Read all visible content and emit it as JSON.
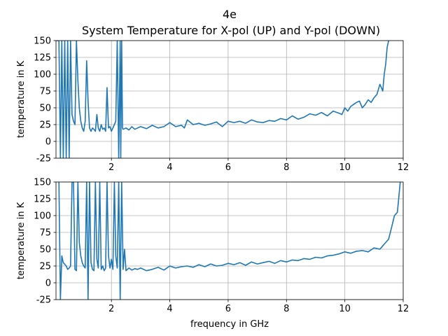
{
  "figure": {
    "suptitle": "4e",
    "subtitle": "System Temperature for X-pol (UP) and Y-pol (DOWN)"
  },
  "chart_data": [
    {
      "type": "line",
      "panel": "top",
      "ylabel": "temperature in K",
      "xlabel": "",
      "xlim": [
        0.1,
        12
      ],
      "ylim": [
        -25,
        150
      ],
      "xticks": [
        2,
        4,
        6,
        8,
        10,
        12
      ],
      "yticks": [
        -25,
        0,
        25,
        50,
        75,
        100,
        125,
        150
      ],
      "grid": true,
      "color": "#1f77b4",
      "series": [
        {
          "x": [
            0.1,
            0.2,
            0.25,
            0.3,
            0.35,
            0.4,
            0.45,
            0.5,
            0.55,
            0.6,
            0.65,
            0.7,
            0.75,
            0.8,
            0.85,
            0.9,
            0.95,
            1.0,
            1.05,
            1.1,
            1.15,
            1.2,
            1.25,
            1.3,
            1.35,
            1.4,
            1.45,
            1.5,
            1.55,
            1.6,
            1.65,
            1.7,
            1.75,
            1.8,
            1.85,
            1.9,
            1.95,
            2.0,
            2.05,
            2.1,
            2.15,
            2.2,
            2.25,
            2.3,
            2.32,
            2.35,
            2.38,
            2.4,
            2.5,
            2.6,
            2.7,
            2.8,
            2.9,
            3.0,
            3.2,
            3.4,
            3.6,
            3.8,
            4.0,
            4.2,
            4.4,
            4.5,
            4.6,
            4.8,
            5.0,
            5.2,
            5.4,
            5.6,
            5.8,
            6.0,
            6.2,
            6.4,
            6.6,
            6.8,
            7.0,
            7.2,
            7.4,
            7.6,
            7.8,
            8.0,
            8.2,
            8.4,
            8.6,
            8.8,
            9.0,
            9.2,
            9.4,
            9.6,
            9.8,
            9.9,
            10.0,
            10.1,
            10.2,
            10.3,
            10.4,
            10.5,
            10.6,
            10.7,
            10.8,
            10.9,
            11.0,
            11.1,
            11.2,
            11.3,
            11.35,
            11.4,
            11.45,
            11.5
          ],
          "y": [
            150,
            150,
            -25,
            150,
            -25,
            150,
            -25,
            150,
            -25,
            150,
            40,
            30,
            25,
            150,
            90,
            50,
            30,
            20,
            15,
            30,
            120,
            60,
            20,
            15,
            20,
            18,
            15,
            40,
            20,
            15,
            25,
            18,
            20,
            15,
            80,
            20,
            22,
            15,
            20,
            25,
            30,
            150,
            -25,
            150,
            -25,
            150,
            20,
            18,
            20,
            17,
            22,
            18,
            20,
            22,
            19,
            24,
            20,
            22,
            28,
            22,
            24,
            20,
            32,
            25,
            27,
            24,
            26,
            29,
            22,
            30,
            28,
            30,
            27,
            32,
            29,
            28,
            31,
            30,
            34,
            32,
            38,
            33,
            36,
            41,
            39,
            43,
            38,
            45,
            42,
            40,
            50,
            45,
            52,
            55,
            58,
            60,
            50,
            55,
            62,
            58,
            65,
            70,
            85,
            75,
            100,
            115,
            140,
            150
          ]
        }
      ]
    },
    {
      "type": "line",
      "panel": "bottom",
      "ylabel": "temperature in K",
      "xlabel": "frequency in GHz",
      "xlim": [
        0.1,
        12
      ],
      "ylim": [
        -25,
        150
      ],
      "xticks": [
        2,
        4,
        6,
        8,
        10,
        12
      ],
      "yticks": [
        -25,
        0,
        25,
        50,
        75,
        100,
        125,
        150
      ],
      "grid": true,
      "color": "#1f77b4",
      "series": [
        {
          "x": [
            0.2,
            0.25,
            0.3,
            0.35,
            0.45,
            0.5,
            0.55,
            0.6,
            0.65,
            0.7,
            0.75,
            0.8,
            0.85,
            0.9,
            0.95,
            1.0,
            1.05,
            1.1,
            1.15,
            1.2,
            1.25,
            1.3,
            1.35,
            1.4,
            1.45,
            1.5,
            1.55,
            1.6,
            1.65,
            1.7,
            1.75,
            1.8,
            1.85,
            1.9,
            1.95,
            2.0,
            2.05,
            2.1,
            2.15,
            2.2,
            2.25,
            2.3,
            2.35,
            2.4,
            2.45,
            2.5,
            2.6,
            2.7,
            2.8,
            2.9,
            3.0,
            3.2,
            3.4,
            3.6,
            3.8,
            4.0,
            4.2,
            4.4,
            4.6,
            4.8,
            5.0,
            5.2,
            5.4,
            5.6,
            5.8,
            6.0,
            6.2,
            6.4,
            6.6,
            6.8,
            7.0,
            7.2,
            7.4,
            7.6,
            7.8,
            8.0,
            8.2,
            8.4,
            8.6,
            8.8,
            9.0,
            9.2,
            9.4,
            9.6,
            9.8,
            10.0,
            10.2,
            10.4,
            10.6,
            10.8,
            11.0,
            11.2,
            11.3,
            11.4,
            11.5,
            11.6,
            11.7,
            11.8,
            11.9
          ],
          "y": [
            150,
            -25,
            40,
            30,
            25,
            20,
            22,
            25,
            150,
            150,
            20,
            18,
            150,
            60,
            40,
            30,
            25,
            22,
            150,
            -25,
            150,
            30,
            20,
            18,
            150,
            35,
            22,
            150,
            20,
            25,
            18,
            22,
            150,
            40,
            22,
            35,
            20,
            150,
            40,
            22,
            150,
            -25,
            150,
            20,
            50,
            18,
            22,
            19,
            21,
            20,
            22,
            18,
            20,
            23,
            19,
            25,
            22,
            24,
            25,
            23,
            27,
            24,
            28,
            25,
            26,
            29,
            27,
            30,
            26,
            31,
            28,
            30,
            32,
            29,
            33,
            31,
            34,
            33,
            36,
            35,
            38,
            37,
            40,
            41,
            43,
            46,
            44,
            47,
            48,
            46,
            52,
            50,
            55,
            60,
            65,
            82,
            100,
            105,
            150
          ]
        }
      ]
    }
  ]
}
